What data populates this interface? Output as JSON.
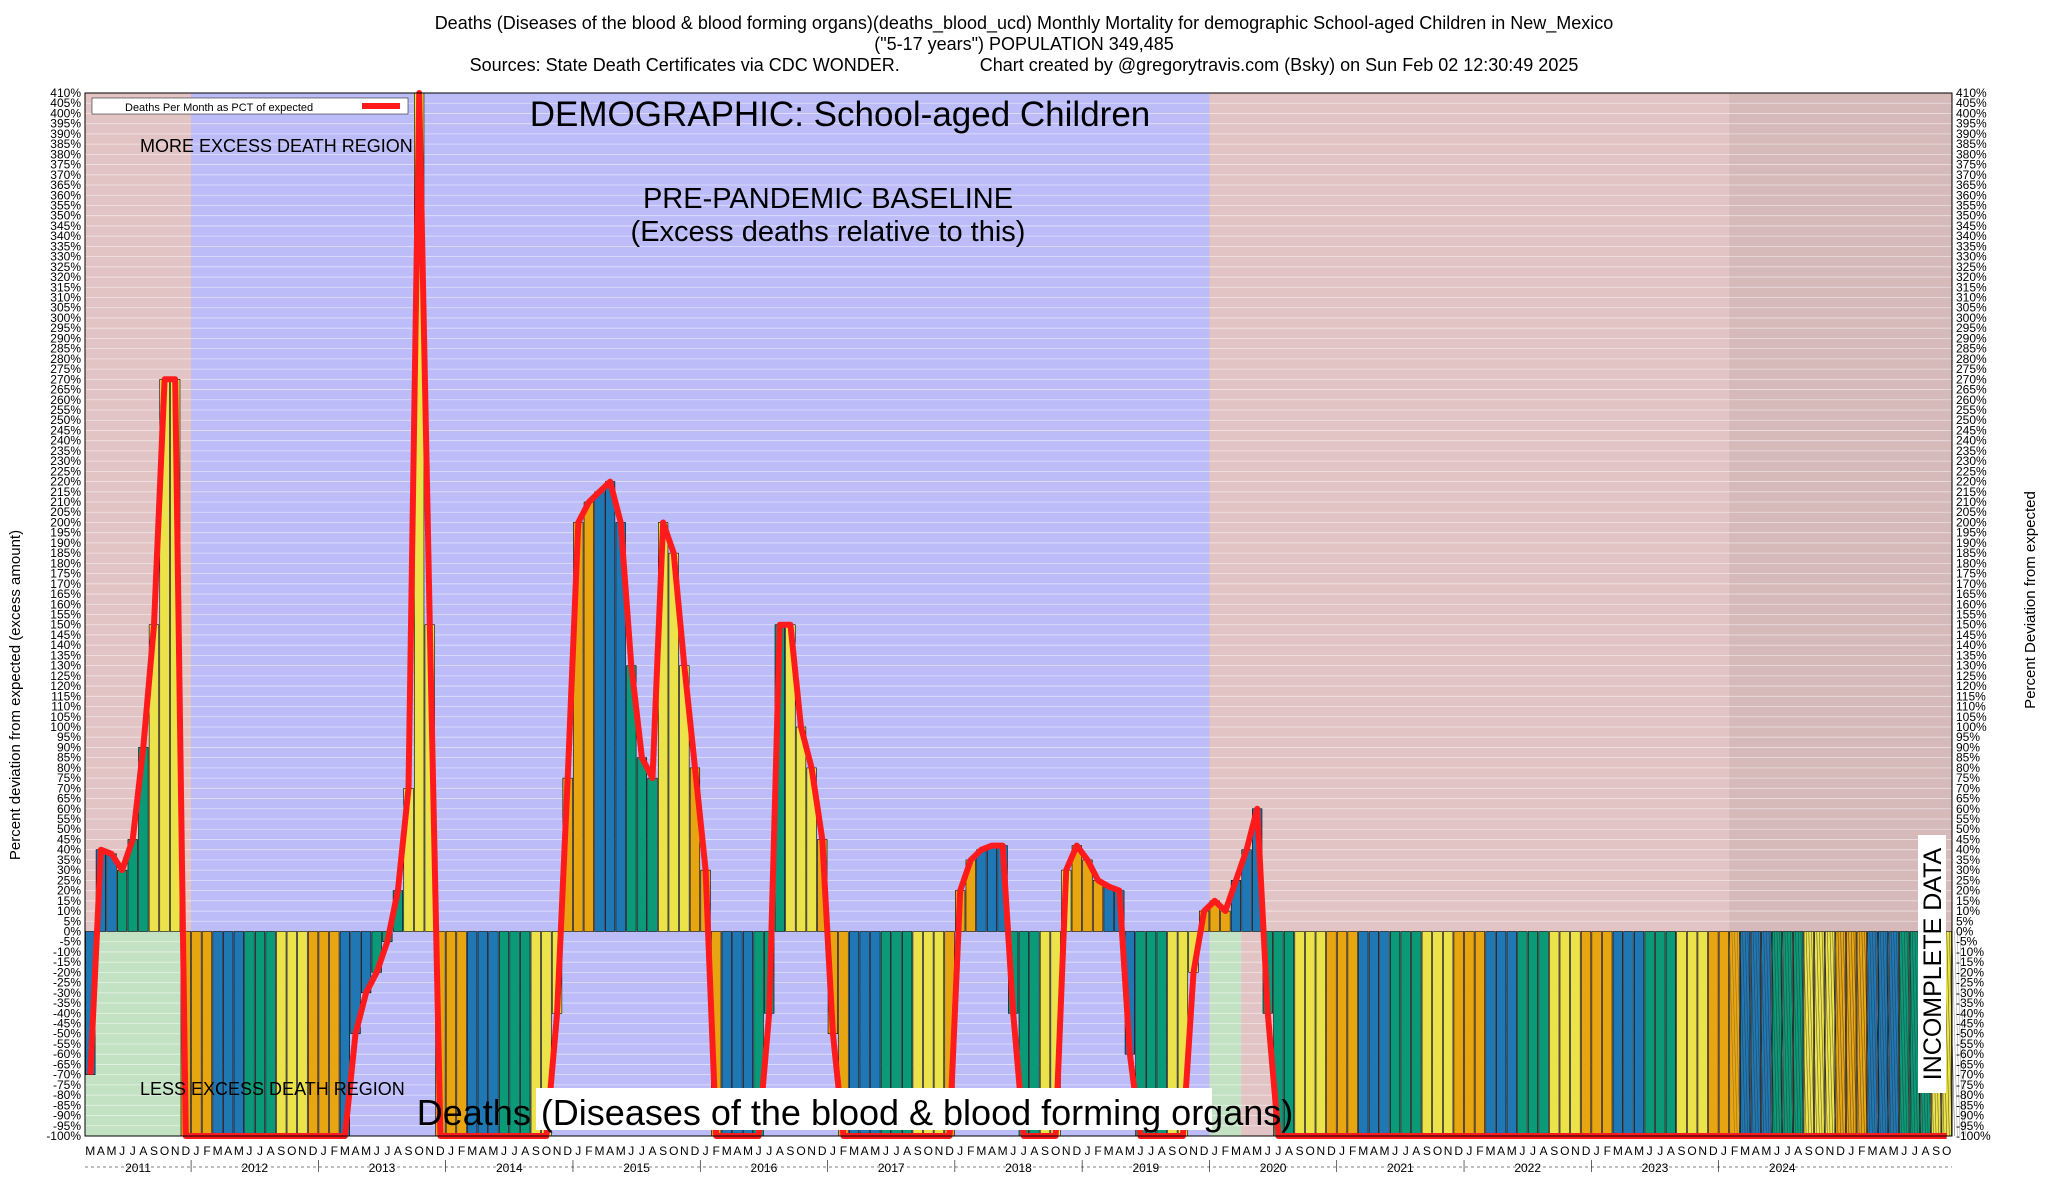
{
  "header": {
    "line1": "Deaths (Diseases of the blood & blood forming organs)(deaths_blood_ucd) Monthly Mortality for demographic School-aged Children in New_Mexico",
    "line2": "(\"5-17 years\") POPULATION 349,485",
    "line3": "Sources: State Death Certificates via CDC WONDER.                Chart created by @gregorytravis.com (Bsky) on Sun Feb 02 12:30:49 2025"
  },
  "chart_data": {
    "type": "bar",
    "title": "DEMOGRAPHIC: School-aged Children",
    "bottom_title": "Deaths (Diseases of the blood & blood forming organs)",
    "ylabel_left": "Percent deviation from expected (excess amount)",
    "ylabel_right": "Percent Deviation from expected",
    "legend": "Deaths Per Month as PCT of expected",
    "ylim": [
      -100,
      410
    ],
    "ytick_step": 5,
    "annotations": {
      "more_excess": "MORE EXCESS DEATH REGION",
      "less_excess": "LESS EXCESS DEATH REGION",
      "baseline_1": "PRE-PANDEMIC BASELINE",
      "baseline_2": "(Excess deaths relative to this)",
      "incomplete": "INCOMPLETE DATA"
    },
    "regions": {
      "baseline_start": "2012-01",
      "baseline_end": "2019-12",
      "incomplete_start": "2024-02"
    },
    "start": "2011-03",
    "month_letters": [
      "J",
      "F",
      "M",
      "A",
      "M",
      "J",
      "J",
      "A",
      "S",
      "O",
      "N",
      "D"
    ],
    "years": [
      "2011",
      "2012",
      "2013",
      "2014",
      "2015",
      "2016",
      "2017",
      "2018",
      "2019",
      "2020",
      "2021",
      "2022",
      "2023",
      "2024"
    ],
    "colors": {
      "blue": "#1f78b4",
      "green": "#0b9a77",
      "yellow": "#ece34a",
      "orange": "#e7a512",
      "line": "#ff1b1b",
      "pink_region": "#e2c4c4",
      "baseline_region": "#bcbcf9",
      "less_region": "#c3e2c3"
    },
    "values": [
      -70,
      40,
      38,
      30,
      45,
      90,
      150,
      270,
      270,
      -100,
      -100,
      -100,
      -100,
      -100,
      -100,
      -100,
      -100,
      -100,
      -100,
      -100,
      -100,
      -100,
      -100,
      -100,
      -100,
      -50,
      -30,
      -20,
      -5,
      20,
      70,
      410,
      150,
      -100,
      -100,
      -100,
      -100,
      -100,
      -100,
      -100,
      -100,
      -100,
      -100,
      -100,
      -40,
      75,
      200,
      210,
      215,
      220,
      200,
      130,
      85,
      75,
      200,
      185,
      130,
      80,
      30,
      -100,
      -100,
      -100,
      -100,
      -100,
      -40,
      150,
      150,
      100,
      80,
      45,
      -50,
      -100,
      -100,
      -100,
      -100,
      -100,
      -100,
      -100,
      -100,
      -100,
      -100,
      -100,
      20,
      35,
      40,
      42,
      42,
      -40,
      -100,
      -100,
      -100,
      -100,
      30,
      42,
      35,
      25,
      22,
      20,
      -60,
      -100,
      -100,
      -100,
      -100,
      -100,
      -20,
      10,
      15,
      10,
      25,
      40,
      60,
      -40,
      -100,
      -100,
      -100,
      -100,
      -100,
      -100,
      -100,
      -100,
      -100,
      -100,
      -100,
      -100,
      -100,
      -100,
      -100,
      -100,
      -100,
      -100,
      -100,
      -100,
      -100,
      -100,
      -100,
      -100,
      -100,
      -100,
      -100,
      -100,
      -100,
      -100,
      -100,
      -100,
      -100,
      -100,
      -100,
      -100,
      -100,
      -100,
      -100,
      -100,
      -100,
      -100,
      -100,
      -100,
      -100,
      -100,
      -100,
      -100,
      -100,
      -100,
      -100,
      -100,
      -100,
      -100,
      -100,
      -100,
      -100,
      -100,
      -100,
      -100,
      -100,
      -100,
      -100,
      -100
    ]
  }
}
